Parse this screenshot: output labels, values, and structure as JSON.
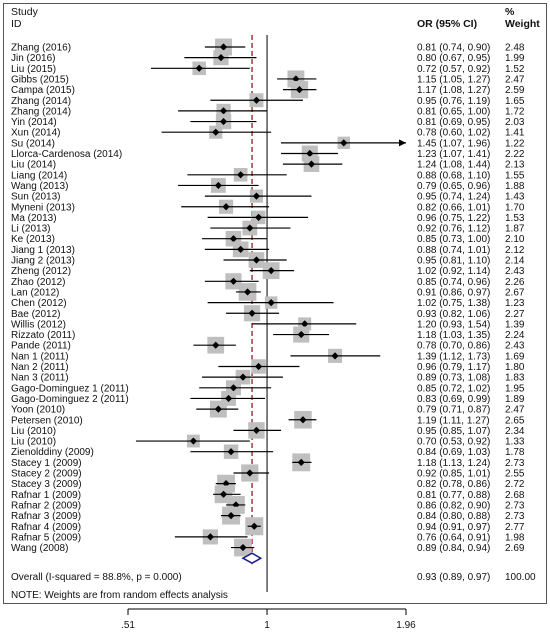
{
  "chart_data": {
    "type": "forest",
    "header": {
      "study_line1": "Study",
      "study_line2": "ID",
      "or_col": "OR (95% CI)",
      "weight_line1": "%",
      "weight_line2": "Weight"
    },
    "studies": [
      {
        "id": "Zhang (2016)",
        "or": 0.81,
        "lo": 0.74,
        "hi": 0.9,
        "text": "0.81 (0.74, 0.90)",
        "weight": "2.48"
      },
      {
        "id": "Jin (2016)",
        "or": 0.8,
        "lo": 0.67,
        "hi": 0.95,
        "text": "0.80 (0.67, 0.95)",
        "weight": "1.99"
      },
      {
        "id": "Liu (2015)",
        "or": 0.72,
        "lo": 0.57,
        "hi": 0.92,
        "text": "0.72 (0.57, 0.92)",
        "weight": "1.52"
      },
      {
        "id": "Gibbs (2015)",
        "or": 1.15,
        "lo": 1.05,
        "hi": 1.27,
        "text": "1.15 (1.05, 1.27)",
        "weight": "2.47"
      },
      {
        "id": "Campa (2015)",
        "or": 1.17,
        "lo": 1.08,
        "hi": 1.27,
        "text": "1.17 (1.08, 1.27)",
        "weight": "2.59"
      },
      {
        "id": "Zhang (2014)",
        "or": 0.95,
        "lo": 0.76,
        "hi": 1.19,
        "text": "0.95 (0.76, 1.19)",
        "weight": "1.65"
      },
      {
        "id": "Zhang (2014)",
        "or": 0.81,
        "lo": 0.65,
        "hi": 1.0,
        "text": "0.81 (0.65, 1.00)",
        "weight": "1.72"
      },
      {
        "id": "Yin (2014)",
        "or": 0.81,
        "lo": 0.69,
        "hi": 0.95,
        "text": "0.81 (0.69, 0.95)",
        "weight": "2.03"
      },
      {
        "id": "Xun (2014)",
        "or": 0.78,
        "lo": 0.6,
        "hi": 1.02,
        "text": "0.78 (0.60, 1.02)",
        "weight": "1.41"
      },
      {
        "id": "Su (2014)",
        "or": 1.45,
        "lo": 1.07,
        "hi": 1.96,
        "text": "1.45 (1.07, 1.96)",
        "weight": "1.22",
        "arrow": true
      },
      {
        "id": "Llorca-Cardenosa (2014)",
        "or": 1.23,
        "lo": 1.07,
        "hi": 1.41,
        "text": "1.23 (1.07, 1.41)",
        "weight": "2.22"
      },
      {
        "id": "Liu (2014)",
        "or": 1.24,
        "lo": 1.08,
        "hi": 1.44,
        "text": "1.24 (1.08, 1.44)",
        "weight": "2.13"
      },
      {
        "id": "Liang (2014)",
        "or": 0.88,
        "lo": 0.68,
        "hi": 1.1,
        "text": "0.88 (0.68, 1.10)",
        "weight": "1.55"
      },
      {
        "id": "Wang (2013)",
        "or": 0.79,
        "lo": 0.65,
        "hi": 0.96,
        "text": "0.79 (0.65, 0.96)",
        "weight": "1.88"
      },
      {
        "id": "Sun (2013)",
        "or": 0.95,
        "lo": 0.74,
        "hi": 1.24,
        "text": "0.95 (0.74, 1.24)",
        "weight": "1.43"
      },
      {
        "id": "Myneni (2013)",
        "or": 0.82,
        "lo": 0.66,
        "hi": 1.01,
        "text": "0.82 (0.66, 1.01)",
        "weight": "1.70"
      },
      {
        "id": "Ma (2013)",
        "or": 0.96,
        "lo": 0.75,
        "hi": 1.22,
        "text": "0.96 (0.75, 1.22)",
        "weight": "1.53"
      },
      {
        "id": "Li (2013)",
        "or": 0.92,
        "lo": 0.76,
        "hi": 1.12,
        "text": "0.92 (0.76, 1.12)",
        "weight": "1.87"
      },
      {
        "id": "Ke (2013)",
        "or": 0.85,
        "lo": 0.73,
        "hi": 1.0,
        "text": "0.85 (0.73, 1.00)",
        "weight": "2.10"
      },
      {
        "id": "Jiang 1 (2013)",
        "or": 0.88,
        "lo": 0.74,
        "hi": 1.01,
        "text": "0.88 (0.74, 1.01)",
        "weight": "2.12"
      },
      {
        "id": "Jiang 2 (2013)",
        "or": 0.95,
        "lo": 0.81,
        "hi": 1.1,
        "text": "0.95 (0.81, 1.10)",
        "weight": "2.14"
      },
      {
        "id": "Zheng (2012)",
        "or": 1.02,
        "lo": 0.92,
        "hi": 1.14,
        "text": "1.02 (0.92, 1.14)",
        "weight": "2.43"
      },
      {
        "id": "Zhao (2012)",
        "or": 0.85,
        "lo": 0.74,
        "hi": 0.96,
        "text": "0.85 (0.74, 0.96)",
        "weight": "2.26"
      },
      {
        "id": "Lan (2012)",
        "or": 0.91,
        "lo": 0.86,
        "hi": 0.97,
        "text": "0.91 (0.86, 0.97)",
        "weight": "2.67"
      },
      {
        "id": "Chen (2012)",
        "or": 1.02,
        "lo": 0.75,
        "hi": 1.38,
        "text": "1.02 (0.75, 1.38)",
        "weight": "1.23"
      },
      {
        "id": "Bae (2012)",
        "or": 0.93,
        "lo": 0.82,
        "hi": 1.06,
        "text": "0.93 (0.82, 1.06)",
        "weight": "2.27"
      },
      {
        "id": "Willis (2012)",
        "or": 1.2,
        "lo": 0.93,
        "hi": 1.54,
        "text": "1.20 (0.93, 1.54)",
        "weight": "1.39"
      },
      {
        "id": "Rizzato (2011)",
        "or": 1.18,
        "lo": 1.03,
        "hi": 1.35,
        "text": "1.18 (1.03, 1.35)",
        "weight": "2.24"
      },
      {
        "id": "Pande (2011)",
        "or": 0.78,
        "lo": 0.7,
        "hi": 0.86,
        "text": "0.78 (0.70, 0.86)",
        "weight": "2.43"
      },
      {
        "id": "Nan 1 (2011)",
        "or": 1.39,
        "lo": 1.12,
        "hi": 1.73,
        "text": "1.39 (1.12, 1.73)",
        "weight": "1.69"
      },
      {
        "id": "Nan 2 (2011)",
        "or": 0.96,
        "lo": 0.79,
        "hi": 1.17,
        "text": "0.96 (0.79, 1.17)",
        "weight": "1.80"
      },
      {
        "id": "Nan 3 (2011)",
        "or": 0.89,
        "lo": 0.73,
        "hi": 1.08,
        "text": "0.89 (0.73, 1.08)",
        "weight": "1.83"
      },
      {
        "id": "Gago-Dominguez 1 (2011)",
        "or": 0.85,
        "lo": 0.72,
        "hi": 1.02,
        "text": "0.85 (0.72, 1.02)",
        "weight": "1.95"
      },
      {
        "id": "Gago-Dominguez 2 (2011)",
        "or": 0.83,
        "lo": 0.69,
        "hi": 0.99,
        "text": "0.83 (0.69, 0.99)",
        "weight": "1.89"
      },
      {
        "id": "Yoon (2010)",
        "or": 0.79,
        "lo": 0.71,
        "hi": 0.87,
        "text": "0.79 (0.71, 0.87)",
        "weight": "2.47"
      },
      {
        "id": "Petersen (2010)",
        "or": 1.19,
        "lo": 1.11,
        "hi": 1.27,
        "text": "1.19 (1.11, 1.27)",
        "weight": "2.65"
      },
      {
        "id": "Liu (2010)",
        "or": 0.95,
        "lo": 0.85,
        "hi": 1.07,
        "text": "0.95 (0.85, 1.07)",
        "weight": "2.34"
      },
      {
        "id": "Liu (2010)",
        "or": 0.7,
        "lo": 0.53,
        "hi": 0.92,
        "text": "0.70 (0.53, 0.92)",
        "weight": "1.33"
      },
      {
        "id": "Zienolddiny (2009)",
        "or": 0.84,
        "lo": 0.69,
        "hi": 1.03,
        "text": "0.84 (0.69, 1.03)",
        "weight": "1.78"
      },
      {
        "id": "Stacey 1 (2009)",
        "or": 1.18,
        "lo": 1.13,
        "hi": 1.24,
        "text": "1.18 (1.13, 1.24)",
        "weight": "2.73"
      },
      {
        "id": "Stacey 2 (2009)",
        "or": 0.92,
        "lo": 0.85,
        "hi": 1.01,
        "text": "0.92 (0.85, 1.01)",
        "weight": "2.55"
      },
      {
        "id": "Stacey 3 (2009)",
        "or": 0.82,
        "lo": 0.78,
        "hi": 0.86,
        "text": "0.82 (0.78, 0.86)",
        "weight": "2.72"
      },
      {
        "id": "Rafnar 1 (2009)",
        "or": 0.81,
        "lo": 0.77,
        "hi": 0.88,
        "text": "0.81 (0.77, 0.88)",
        "weight": "2.68"
      },
      {
        "id": "Rafnar 2 (2009)",
        "or": 0.86,
        "lo": 0.82,
        "hi": 0.9,
        "text": "0.86 (0.82, 0.90)",
        "weight": "2.73"
      },
      {
        "id": "Rafnar 3 (2009)",
        "or": 0.84,
        "lo": 0.8,
        "hi": 0.88,
        "text": "0.84 (0.80, 0.88)",
        "weight": "2.73"
      },
      {
        "id": "Rafnar 4 (2009)",
        "or": 0.94,
        "lo": 0.91,
        "hi": 0.97,
        "text": "0.94 (0.91, 0.97)",
        "weight": "2.77"
      },
      {
        "id": "Rafnar 5 (2009)",
        "or": 0.76,
        "lo": 0.64,
        "hi": 0.91,
        "text": "0.76 (0.64, 0.91)",
        "weight": "1.98"
      },
      {
        "id": "Wang (2008)",
        "or": 0.89,
        "lo": 0.84,
        "hi": 0.94,
        "text": "0.89 (0.84, 0.94)",
        "weight": "2.69"
      }
    ],
    "overall": {
      "label": "Overall  (I-squared = 88.8%, p = 0.000)",
      "or": 0.93,
      "lo": 0.89,
      "hi": 0.97,
      "text": "0.93 (0.89, 0.97)",
      "weight": "100.00"
    },
    "note": "NOTE: Weights are from random effects analysis",
    "x_axis": {
      "scale": "log",
      "range": [
        0.51,
        1.96
      ],
      "ticks": [
        0.51,
        1,
        1.96
      ],
      "tick_labels": [
        ".51",
        "1",
        "1.96"
      ],
      "null_line": 1
    },
    "colors": {
      "ci_line": "#000000",
      "weight_box": "#bfbfbf",
      "point": "#000000",
      "overall_diamond": "#1a1a8c",
      "overall_dashed_line": "#9b1b1b",
      "frame": "#555555"
    }
  }
}
